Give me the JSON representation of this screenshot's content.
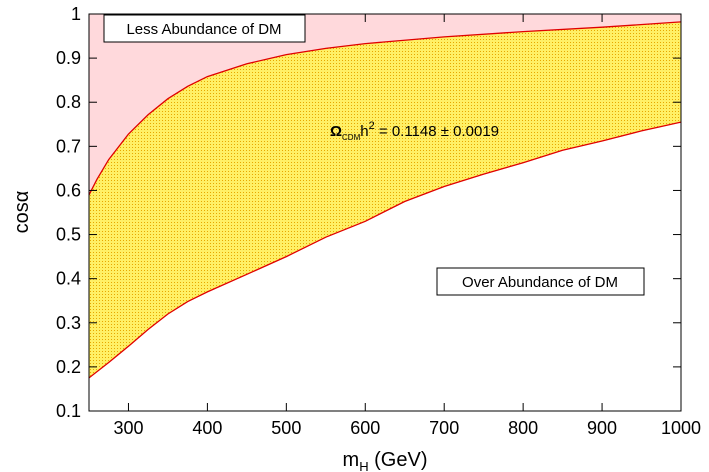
{
  "chart_data": {
    "type": "area",
    "xlabel_main": "m",
    "xlabel_sub": "H",
    "xlabel_unit": " (GeV)",
    "ylabel": "cosα",
    "xlim": [
      250,
      1000
    ],
    "ylim": [
      0.1,
      1.0
    ],
    "xticks": [
      "300",
      "400",
      "500",
      "600",
      "700",
      "800",
      "900",
      "1000"
    ],
    "yticks": [
      "0.1",
      "0.2",
      "0.3",
      "0.4",
      "0.5",
      "0.6",
      "0.7",
      "0.8",
      "0.9",
      "1"
    ],
    "grid": false,
    "regions": [
      {
        "name": "Less Abundance of DM",
        "color": "#ffd9dc",
        "position": "top-left"
      },
      {
        "name": "Ω_CDM h^2 = 0.1148 ± 0.0019",
        "color": "#fff066",
        "pattern_color": "#e6a800",
        "boundary_color": "#e00000",
        "upper_boundary": {
          "x": [
            250,
            260,
            275,
            300,
            325,
            350,
            375,
            400,
            450,
            500,
            550,
            600,
            700,
            800,
            900,
            1000
          ],
          "y": [
            0.59,
            0.625,
            0.67,
            0.728,
            0.772,
            0.808,
            0.836,
            0.858,
            0.887,
            0.908,
            0.922,
            0.933,
            0.948,
            0.96,
            0.97,
            0.982
          ]
        },
        "lower_boundary": {
          "x": [
            250,
            275,
            300,
            325,
            350,
            375,
            400,
            450,
            500,
            550,
            600,
            650,
            700,
            750,
            800,
            850,
            900,
            950,
            1000
          ],
          "y": [
            0.175,
            0.21,
            0.247,
            0.285,
            0.32,
            0.348,
            0.37,
            0.41,
            0.45,
            0.494,
            0.53,
            0.575,
            0.609,
            0.637,
            0.663,
            0.691,
            0.712,
            0.735,
            0.755
          ]
        }
      },
      {
        "name": "Over Abundance of DM",
        "color": "#ffffff",
        "position": "bottom-right"
      }
    ],
    "annotations": {
      "less_label": "Less Abundance of DM",
      "over_label": "Over Abundance of DM",
      "formula": {
        "omega": "Ω",
        "omega_sub": "CDM",
        "h": "h",
        "h_sup": "2",
        "rest": " = 0.1148 ± 0.0019"
      }
    }
  }
}
